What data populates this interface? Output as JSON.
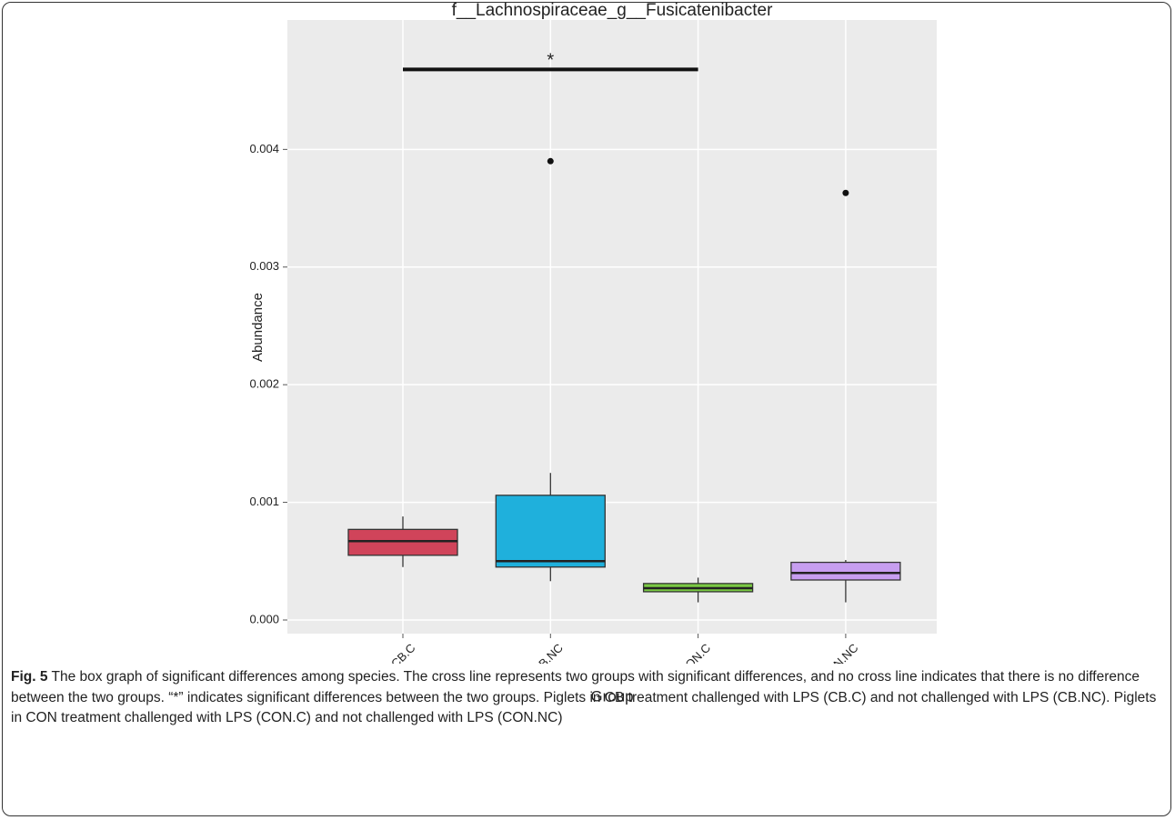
{
  "chart_data": {
    "type": "box",
    "title": "f__Lachnospiraceae_g__Fusicatenibacter",
    "xlabel": "Group",
    "ylabel": "Abundance",
    "categories": [
      "CB.C",
      "CB.NC",
      "CON.C",
      "CON.NC"
    ],
    "boxes": [
      {
        "color": "#d0445a",
        "whisker_low": 0.00045,
        "q1": 0.00055,
        "median": 0.00067,
        "q3": 0.00077,
        "whisker_high": 0.00088,
        "outliers": []
      },
      {
        "color": "#1fb0dc",
        "whisker_low": 0.00033,
        "q1": 0.00045,
        "median": 0.0005,
        "q3": 0.00106,
        "whisker_high": 0.00125,
        "outliers": [
          0.0039
        ]
      },
      {
        "color": "#7ac943",
        "whisker_low": 0.00015,
        "q1": 0.00024,
        "median": 0.00027,
        "q3": 0.00031,
        "whisker_high": 0.00036,
        "outliers": []
      },
      {
        "color": "#c79ef0",
        "whisker_low": 0.00015,
        "q1": 0.00034,
        "median": 0.0004,
        "q3": 0.00049,
        "whisker_high": 0.00051,
        "outliers": [
          0.00363
        ]
      }
    ],
    "ylim": [
      -0.000116,
      0.0051
    ],
    "yticks": [
      {
        "value": 0,
        "label": "0.000"
      },
      {
        "value": 0.001,
        "label": "0.001"
      },
      {
        "value": 0.002,
        "label": "0.002"
      },
      {
        "value": 0.003,
        "label": "0.003"
      },
      {
        "value": 0.004,
        "label": "0.004"
      }
    ],
    "grid": true,
    "significance": [
      {
        "from": 0,
        "to": 2,
        "y": 0.00468,
        "label": "*"
      }
    ]
  },
  "caption": {
    "label": "Fig. 5",
    "text": "The box graph of significant differences among species. The cross line represents two groups with significant differences, and no cross line indicates that there is no difference between the two groups. “*” indicates significant differences between the two groups. Piglets in CB treatment challenged with LPS (CB.C) and not challenged with LPS (CB.NC). Piglets in CON treatment challenged with LPS (CON.C) and not challenged with LPS (CON.NC)"
  }
}
